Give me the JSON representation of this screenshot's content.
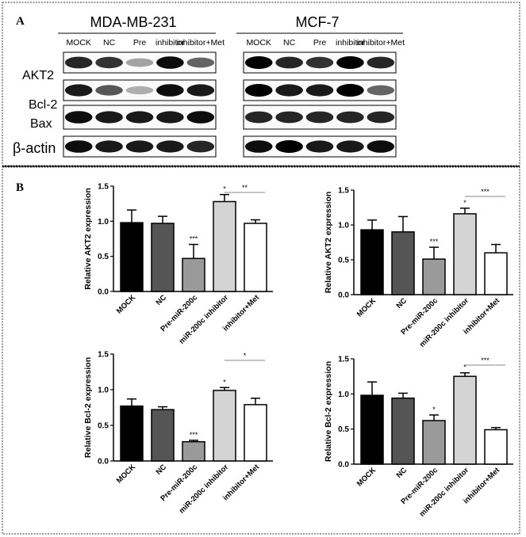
{
  "panel_a": {
    "label": "A",
    "row_labels": [
      "AKT2",
      "Bcl-2",
      "Bax",
      "β-actin"
    ],
    "blots": [
      {
        "cell_line": "MDA-MB-231",
        "lanes": [
          "MOCK",
          "NC",
          "Pre",
          "inhibitor",
          "inhibitor+Met"
        ],
        "band_intensity": [
          [
            0.85,
            0.8,
            0.35,
            0.95,
            0.6
          ],
          [
            0.9,
            0.65,
            0.3,
            0.95,
            0.9
          ],
          [
            0.95,
            0.9,
            0.9,
            0.9,
            0.95
          ],
          [
            0.95,
            0.9,
            0.9,
            0.9,
            0.85
          ]
        ]
      },
      {
        "cell_line": "MCF-7",
        "lanes": [
          "MOCK",
          "NC",
          "Pre",
          "inhibitor",
          "inhibitor+Met"
        ],
        "band_intensity": [
          [
            1.0,
            0.85,
            0.8,
            1.0,
            0.85
          ],
          [
            1.0,
            0.9,
            0.9,
            1.0,
            0.6
          ],
          [
            0.85,
            0.85,
            0.85,
            0.85,
            0.85
          ],
          [
            0.95,
            1.0,
            0.9,
            0.9,
            0.95
          ]
        ]
      }
    ]
  },
  "panel_b": {
    "label": "B"
  },
  "chart_data": [
    {
      "type": "bar",
      "categories": [
        "MOCK",
        "NC",
        "Pre-miR-200c",
        "miR-200c inhibitor",
        "inhibitor+Met"
      ],
      "values": [
        0.98,
        0.97,
        0.47,
        1.28,
        0.97
      ],
      "errors": [
        0.18,
        0.1,
        0.2,
        0.1,
        0.05
      ],
      "significance": [
        "",
        "",
        "***",
        "*",
        ""
      ],
      "bracket": {
        "from": "miR-200c inhibitor",
        "to": "inhibitor+Met",
        "label": "**"
      },
      "colors": [
        "#000000",
        "#555555",
        "#9a9a9a",
        "#d4d4d4",
        "#ffffff"
      ],
      "ylabel": "Relative AKT2 expression",
      "ylim": [
        0,
        1.5
      ],
      "yticks": [
        "0.0",
        "0.5",
        "1.0",
        "1.5"
      ]
    },
    {
      "type": "bar",
      "categories": [
        "MOCK",
        "NC",
        "Pre-miR-200c",
        "miR-200c inhibitor",
        "inhibitor+Met"
      ],
      "values": [
        0.93,
        0.9,
        0.51,
        1.16,
        0.6
      ],
      "errors": [
        0.14,
        0.22,
        0.17,
        0.08,
        0.12
      ],
      "significance": [
        "",
        "",
        "***",
        "*",
        ""
      ],
      "bracket": {
        "from": "miR-200c inhibitor",
        "to": "inhibitor+Met",
        "label": "***"
      },
      "colors": [
        "#000000",
        "#555555",
        "#9a9a9a",
        "#d4d4d4",
        "#ffffff"
      ],
      "ylabel": "Relative AKT2 expression",
      "ylim": [
        0,
        1.5
      ],
      "yticks": [
        "0.0",
        "0.5",
        "1.0",
        "1.5"
      ]
    },
    {
      "type": "bar",
      "categories": [
        "MOCK",
        "NC",
        "Pre-miR-200c",
        "miR-200c inhibitor",
        "inhibitor+Met"
      ],
      "values": [
        0.77,
        0.72,
        0.27,
        0.99,
        0.79
      ],
      "errors": [
        0.1,
        0.04,
        0.02,
        0.04,
        0.09
      ],
      "significance": [
        "",
        "",
        "***",
        "*",
        ""
      ],
      "bracket": {
        "from": "miR-200c inhibitor",
        "to": "inhibitor+Met",
        "label": "*"
      },
      "colors": [
        "#000000",
        "#555555",
        "#9a9a9a",
        "#d4d4d4",
        "#ffffff"
      ],
      "ylabel": "Relative Bcl-2 expression",
      "ylim": [
        0,
        1.5
      ],
      "yticks": [
        "0.0",
        "0.5",
        "1.0",
        "1.5"
      ]
    },
    {
      "type": "bar",
      "categories": [
        "MOCK",
        "NC",
        "Pre-miR-200c",
        "miR-200c inhibitor",
        "inhibitor+Met"
      ],
      "values": [
        0.98,
        0.94,
        0.62,
        1.25,
        0.49
      ],
      "errors": [
        0.19,
        0.07,
        0.08,
        0.05,
        0.03
      ],
      "significance": [
        "",
        "",
        "*",
        "*",
        ""
      ],
      "bracket": {
        "from": "miR-200c inhibitor",
        "to": "inhibitor+Met",
        "label": "***"
      },
      "colors": [
        "#000000",
        "#555555",
        "#9a9a9a",
        "#d4d4d4",
        "#ffffff"
      ],
      "ylabel": "Relative Bcl-2 expression",
      "ylim": [
        0,
        1.5
      ],
      "yticks": [
        "0.0",
        "0.5",
        "1.0",
        "1.5"
      ]
    }
  ]
}
